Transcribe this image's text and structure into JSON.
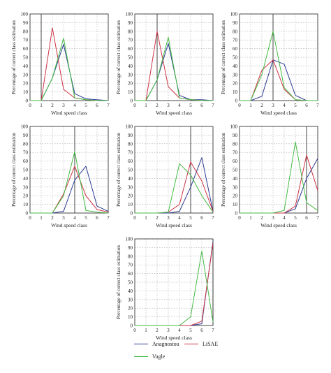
{
  "colors": {
    "anagnostou": "#2b3a91",
    "lisae": "#cc3344",
    "vagle": "#44bb44",
    "grid": "#9a9a9a",
    "axis": "#222222"
  },
  "chart_data": [
    {
      "type": "line",
      "xlabel": "Wind speed class",
      "ylabel": "Percentage of correct class estimation",
      "xlim": [
        0,
        7
      ],
      "ylim": [
        0,
        100
      ],
      "xticks": [
        "0",
        "1",
        "2",
        "3",
        "4",
        "5",
        "6",
        "7"
      ],
      "yticks": [
        "0",
        "10",
        "20",
        "30",
        "40",
        "50",
        "60",
        "70",
        "80",
        "90",
        "100"
      ],
      "vline": 1,
      "x": [
        0,
        1,
        2,
        3,
        4,
        5,
        6,
        7
      ],
      "series": [
        {
          "name": "Anagnostou",
          "color_key": "anagnostou",
          "values": [
            0,
            0,
            26,
            65,
            8,
            2,
            1,
            0
          ]
        },
        {
          "name": "LiSAE",
          "color_key": "lisae",
          "values": [
            0,
            0,
            84,
            13,
            3,
            1,
            0,
            0
          ]
        },
        {
          "name": "Vagle",
          "color_key": "vagle",
          "values": [
            0,
            0,
            26,
            72,
            3,
            1,
            0,
            0
          ]
        }
      ]
    },
    {
      "type": "line",
      "xlabel": "Wind speed class",
      "ylabel": "Percentage of correct class estimation",
      "xlim": [
        0,
        7
      ],
      "ylim": [
        0,
        100
      ],
      "xticks": [
        "0",
        "1",
        "2",
        "3",
        "4",
        "5",
        "6",
        "7"
      ],
      "yticks": [
        "0",
        "10",
        "20",
        "30",
        "40",
        "50",
        "60",
        "70",
        "80",
        "90",
        "100"
      ],
      "vline": 2,
      "x": [
        0,
        1,
        2,
        3,
        4,
        5,
        6,
        7
      ],
      "series": [
        {
          "name": "Anagnostou",
          "color_key": "anagnostou",
          "values": [
            0,
            0,
            24,
            66,
            6,
            1,
            1,
            0
          ]
        },
        {
          "name": "LiSAE",
          "color_key": "lisae",
          "values": [
            0,
            0,
            80,
            16,
            3,
            1,
            0,
            0
          ]
        },
        {
          "name": "Vagle",
          "color_key": "vagle",
          "values": [
            0,
            0,
            24,
            73,
            3,
            1,
            0,
            0
          ]
        }
      ]
    },
    {
      "type": "line",
      "xlabel": "Wind speed class",
      "ylabel": "Percentage of correct class estimation",
      "xlim": [
        0,
        7
      ],
      "ylim": [
        0,
        100
      ],
      "xticks": [
        "0",
        "1",
        "2",
        "3",
        "4",
        "5",
        "6",
        "7"
      ],
      "yticks": [
        "0",
        "10",
        "20",
        "30",
        "40",
        "50",
        "60",
        "70",
        "80",
        "90",
        "100"
      ],
      "vline": 3,
      "x": [
        0,
        1,
        2,
        3,
        4,
        5,
        6,
        7
      ],
      "series": [
        {
          "name": "Anagnostou",
          "color_key": "anagnostou",
          "values": [
            0,
            0,
            5,
            47,
            42,
            6,
            0,
            0
          ]
        },
        {
          "name": "LiSAE",
          "color_key": "lisae",
          "values": [
            0,
            0,
            35,
            47,
            13,
            1,
            0,
            0
          ]
        },
        {
          "name": "Vagle",
          "color_key": "vagle",
          "values": [
            0,
            0,
            30,
            80,
            15,
            1,
            0,
            0
          ]
        }
      ]
    },
    {
      "type": "line",
      "xlabel": "Wind speed class",
      "ylabel": "Percentage of correct class estimation",
      "xlim": [
        0,
        7
      ],
      "ylim": [
        0,
        100
      ],
      "xticks": [
        "0",
        "1",
        "2",
        "3",
        "4",
        "5",
        "6",
        "7"
      ],
      "yticks": [
        "0",
        "10",
        "20",
        "30",
        "40",
        "50",
        "60",
        "70",
        "80",
        "90",
        "100"
      ],
      "vline": 4,
      "x": [
        0,
        1,
        2,
        3,
        4,
        5,
        6,
        7
      ],
      "series": [
        {
          "name": "Anagnostou",
          "color_key": "anagnostou",
          "values": [
            0,
            0,
            0,
            2,
            38,
            54,
            8,
            2
          ]
        },
        {
          "name": "LiSAE",
          "color_key": "lisae",
          "values": [
            0,
            0,
            0,
            22,
            54,
            20,
            4,
            1
          ]
        },
        {
          "name": "Vagle",
          "color_key": "vagle",
          "values": [
            0,
            0,
            0,
            20,
            71,
            3,
            1,
            0
          ]
        }
      ]
    },
    {
      "type": "line",
      "xlabel": "Wind speed class",
      "ylabel": "Percentage of correct class estimation",
      "xlim": [
        0,
        7
      ],
      "ylim": [
        0,
        100
      ],
      "xticks": [
        "0",
        "1",
        "2",
        "3",
        "4",
        "5",
        "6",
        "7"
      ],
      "yticks": [
        "0",
        "10",
        "20",
        "30",
        "40",
        "50",
        "60",
        "70",
        "80",
        "90",
        "100"
      ],
      "vline": 5,
      "x": [
        0,
        1,
        2,
        3,
        4,
        5,
        6,
        7
      ],
      "series": [
        {
          "name": "Anagnostou",
          "color_key": "anagnostou",
          "values": [
            0,
            0,
            0,
            0,
            2,
            30,
            64,
            2
          ]
        },
        {
          "name": "LiSAE",
          "color_key": "lisae",
          "values": [
            0,
            0,
            0,
            1,
            10,
            59,
            37,
            2
          ]
        },
        {
          "name": "Vagle",
          "color_key": "vagle",
          "values": [
            0,
            0,
            0,
            1,
            57,
            44,
            20,
            1
          ]
        }
      ]
    },
    {
      "type": "line",
      "xlabel": "Wind speed class",
      "ylabel": "Percentage of correct class estimation",
      "xlim": [
        0,
        7
      ],
      "ylim": [
        0,
        100
      ],
      "xticks": [
        "0",
        "1",
        "2",
        "3",
        "4",
        "5",
        "6",
        "7"
      ],
      "yticks": [
        "0",
        "10",
        "20",
        "30",
        "40",
        "50",
        "60",
        "70",
        "80",
        "90",
        "100"
      ],
      "vline": 6,
      "x": [
        0,
        1,
        2,
        3,
        4,
        5,
        6,
        7
      ],
      "series": [
        {
          "name": "Anagnostou",
          "color_key": "anagnostou",
          "values": [
            0,
            0,
            0,
            0,
            0,
            5,
            40,
            63
          ]
        },
        {
          "name": "LiSAE",
          "color_key": "lisae",
          "values": [
            0,
            0,
            0,
            0,
            0,
            8,
            67,
            26
          ]
        },
        {
          "name": "Vagle",
          "color_key": "vagle",
          "values": [
            0,
            0,
            0,
            0,
            3,
            82,
            12,
            3
          ]
        }
      ]
    },
    {
      "type": "line",
      "xlabel": "Wind speed class",
      "ylabel": "Percentage of correct class estimation",
      "xlim": [
        0,
        7
      ],
      "ylim": [
        0,
        100
      ],
      "xticks": [
        "0",
        "1",
        "2",
        "3",
        "4",
        "5",
        "6",
        "7"
      ],
      "yticks": [
        "0",
        "10",
        "20",
        "30",
        "40",
        "50",
        "60",
        "70",
        "80",
        "90",
        "100"
      ],
      "vline": 7,
      "x": [
        0,
        1,
        2,
        3,
        4,
        5,
        6,
        7
      ],
      "series": [
        {
          "name": "Anagnostou",
          "color_key": "anagnostou",
          "values": [
            0,
            0,
            0,
            0,
            0,
            0,
            2,
            97
          ]
        },
        {
          "name": "LiSAE",
          "color_key": "lisae",
          "values": [
            0,
            0,
            0,
            0,
            0,
            0,
            5,
            95
          ]
        },
        {
          "name": "Vagle",
          "color_key": "vagle",
          "values": [
            0,
            0,
            0,
            0,
            0,
            10,
            86,
            4
          ]
        }
      ]
    }
  ],
  "legend": {
    "items": [
      {
        "label": "Anagnostou",
        "color_key": "anagnostou"
      },
      {
        "label": "LiSAE",
        "color_key": "lisae"
      },
      {
        "label": "Vagle",
        "color_key": "vagle"
      }
    ]
  }
}
